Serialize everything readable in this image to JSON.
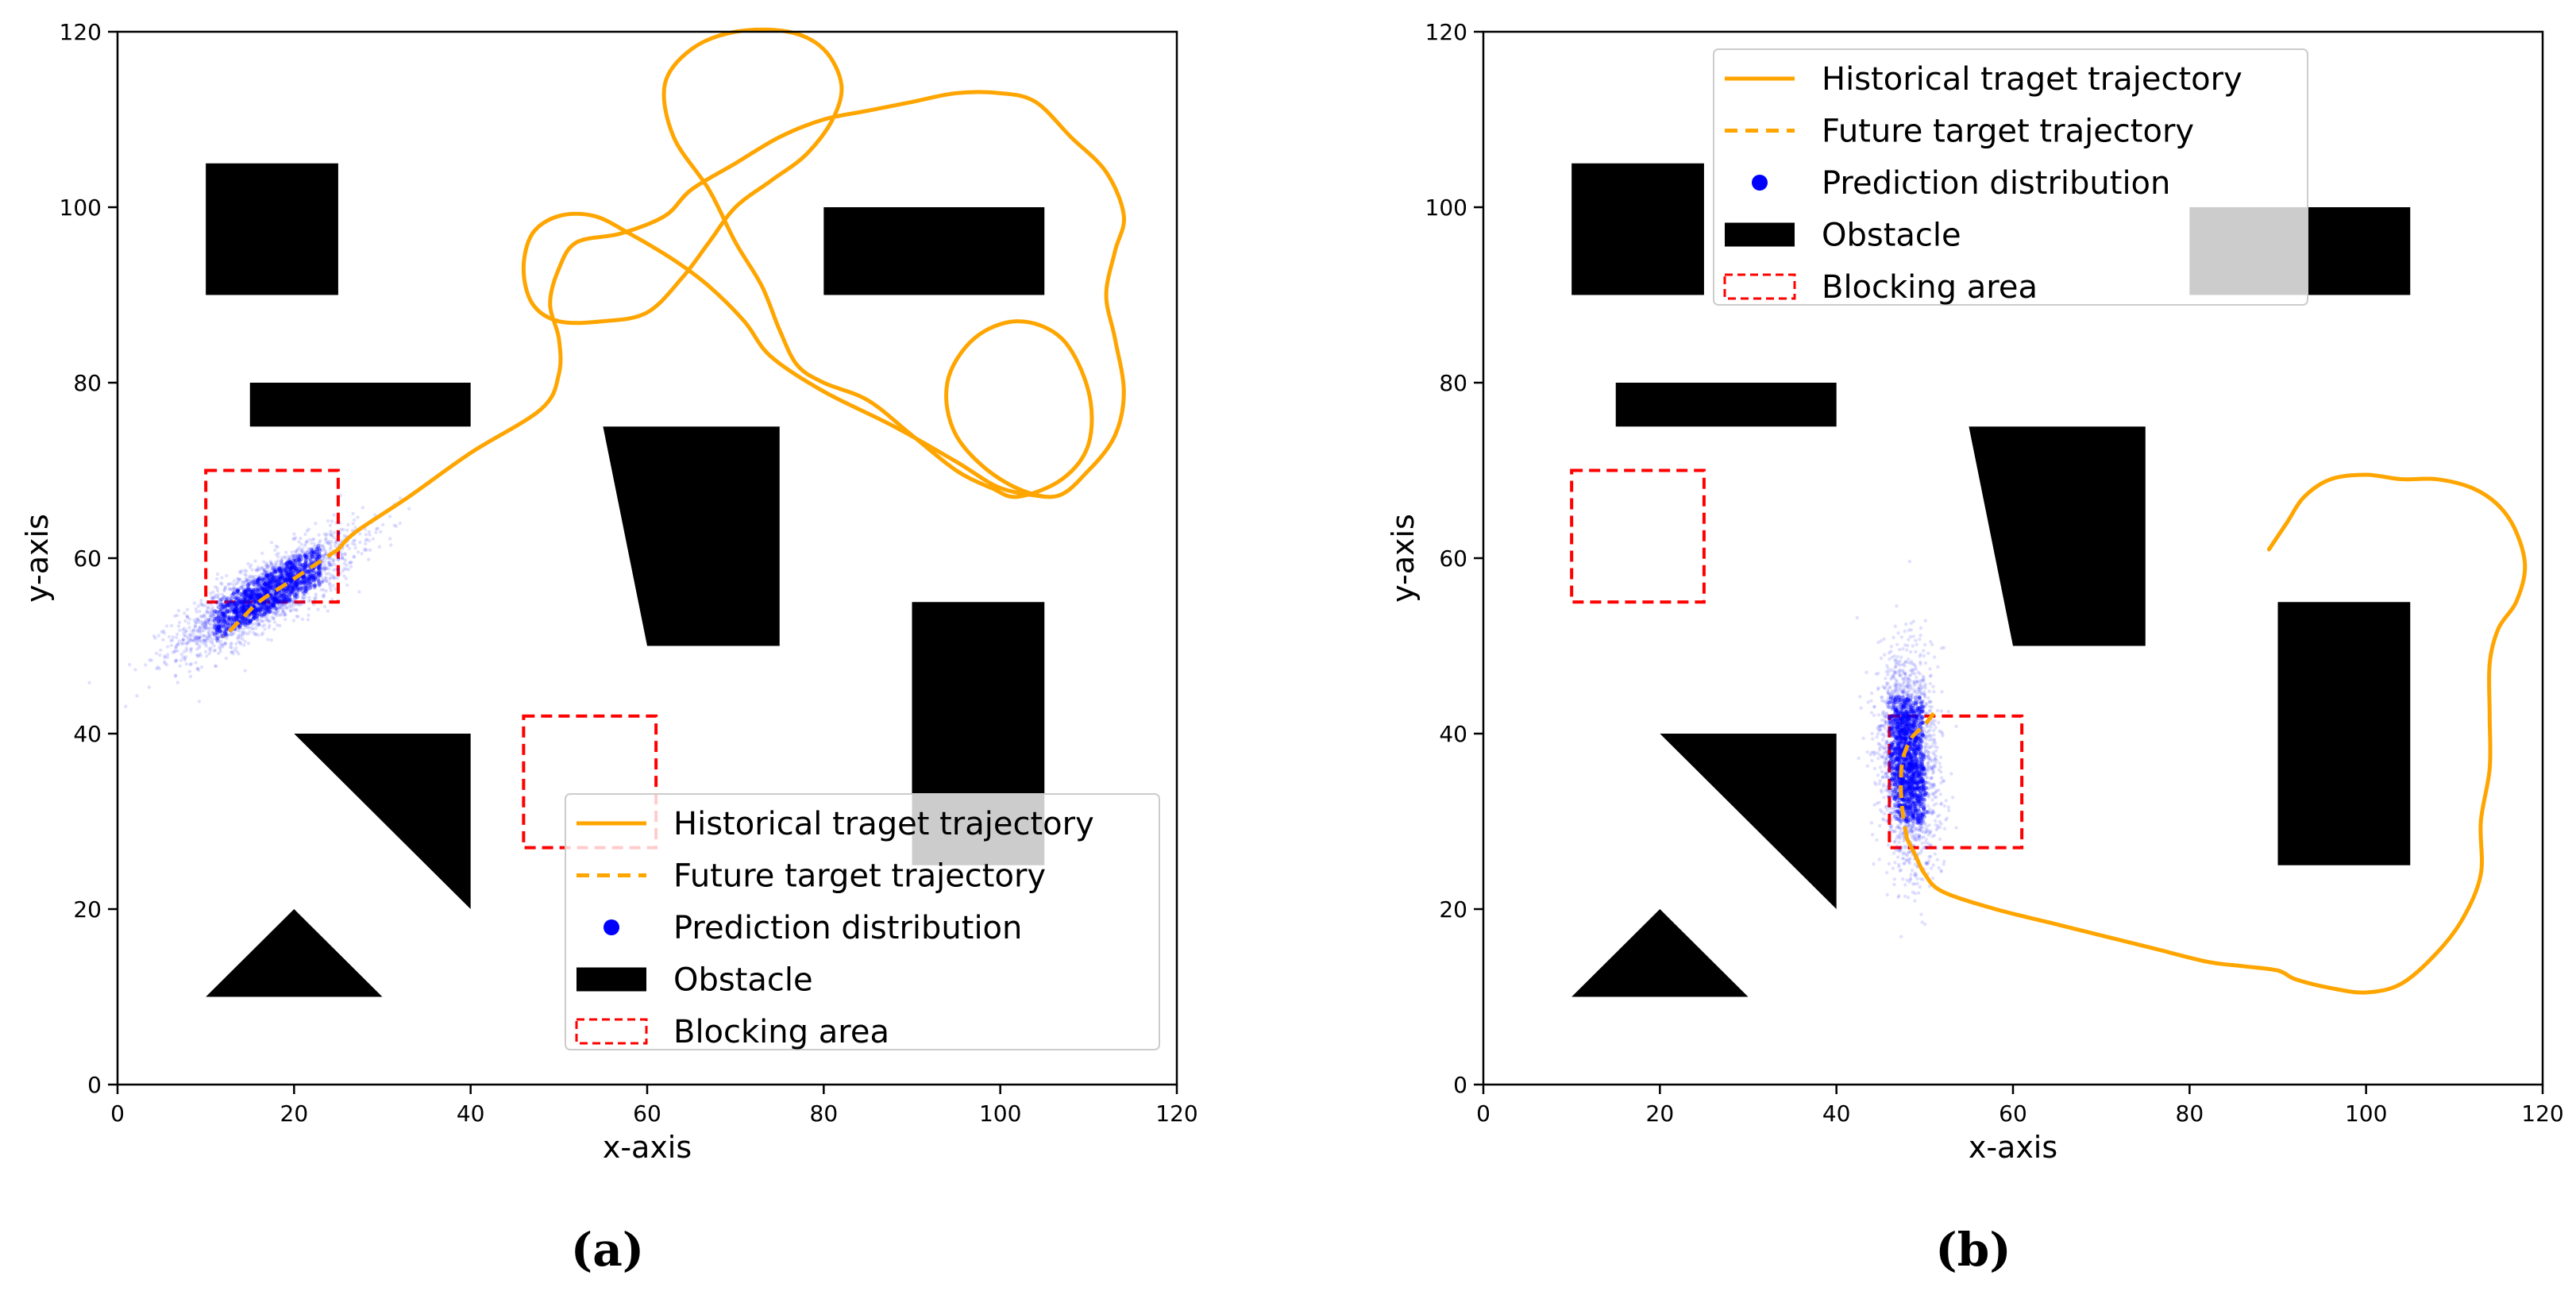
{
  "chart_data": [
    {
      "type": "scatter",
      "panel_label": "(a)",
      "xlabel": "x-axis",
      "ylabel": "y-axis",
      "xlim": [
        0,
        120
      ],
      "ylim": [
        0,
        120
      ],
      "x_ticks": [
        0,
        20,
        40,
        60,
        80,
        100,
        120
      ],
      "y_ticks": [
        0,
        20,
        40,
        60,
        80,
        100,
        120
      ],
      "grid": false,
      "legend_position": "lower-right",
      "legend": [
        "Historical traget trajectory",
        "Future target trajectory",
        "Prediction distribution",
        "Obstacle",
        "Blocking area"
      ],
      "obstacles": [
        [
          [
            10,
            105
          ],
          [
            25,
            105
          ],
          [
            25,
            90
          ],
          [
            10,
            90
          ]
        ],
        [
          [
            15,
            80
          ],
          [
            40,
            80
          ],
          [
            40,
            75
          ],
          [
            15,
            75
          ]
        ],
        [
          [
            80,
            100
          ],
          [
            105,
            100
          ],
          [
            105,
            90
          ],
          [
            80,
            90
          ]
        ],
        [
          [
            55,
            75
          ],
          [
            75,
            75
          ],
          [
            75,
            50
          ],
          [
            60,
            50
          ]
        ],
        [
          [
            90,
            55
          ],
          [
            105,
            55
          ],
          [
            105,
            25
          ],
          [
            90,
            25
          ]
        ],
        [
          [
            20,
            40
          ],
          [
            40,
            40
          ],
          [
            40,
            20
          ]
        ],
        [
          [
            10,
            10
          ],
          [
            20,
            20
          ],
          [
            30,
            10
          ]
        ]
      ],
      "blocking_areas": [
        {
          "x": 10,
          "y": 55,
          "w": 15,
          "h": 15
        },
        {
          "x": 46,
          "y": 27,
          "w": 15,
          "h": 15
        }
      ],
      "historical_trajectory": [
        [
          105,
          67
        ],
        [
          100,
          68
        ],
        [
          95,
          71
        ],
        [
          88,
          75
        ],
        [
          80,
          79
        ],
        [
          74,
          83
        ],
        [
          71,
          87
        ],
        [
          67,
          91
        ],
        [
          63,
          94
        ],
        [
          58,
          97
        ],
        [
          54,
          99
        ],
        [
          50,
          99
        ],
        [
          47,
          97
        ],
        [
          46,
          93
        ],
        [
          47,
          89
        ],
        [
          50,
          87
        ],
        [
          55,
          87
        ],
        [
          60,
          88
        ],
        [
          64,
          92
        ],
        [
          67,
          96
        ],
        [
          70,
          100
        ],
        [
          74,
          103
        ],
        [
          78,
          106
        ],
        [
          81,
          110
        ],
        [
          82,
          114
        ],
        [
          80,
          118
        ],
        [
          76,
          120
        ],
        [
          70,
          120
        ],
        [
          65,
          118
        ],
        [
          62,
          114
        ],
        [
          63,
          108
        ],
        [
          67,
          102
        ],
        [
          70,
          96
        ],
        [
          73,
          91
        ],
        [
          75,
          86
        ],
        [
          77,
          82
        ],
        [
          80,
          80
        ],
        [
          85,
          78
        ],
        [
          90,
          74
        ],
        [
          95,
          70
        ],
        [
          99,
          68
        ],
        [
          102,
          67
        ],
        [
          107,
          69
        ],
        [
          110,
          73
        ],
        [
          110,
          79
        ],
        [
          107,
          85
        ],
        [
          102,
          87
        ],
        [
          97,
          85
        ],
        [
          94,
          80
        ],
        [
          95,
          74
        ],
        [
          100,
          69
        ],
        [
          106,
          67
        ],
        [
          110,
          70
        ],
        [
          113,
          74
        ],
        [
          114,
          79
        ],
        [
          113,
          85
        ],
        [
          112,
          90
        ],
        [
          113,
          95
        ],
        [
          114,
          99
        ],
        [
          112,
          104
        ],
        [
          108,
          108
        ],
        [
          104,
          112
        ],
        [
          100,
          113
        ],
        [
          95,
          113
        ],
        [
          90,
          112
        ],
        [
          85,
          111
        ],
        [
          80,
          110
        ],
        [
          75,
          108
        ],
        [
          70,
          105
        ],
        [
          65,
          102
        ],
        [
          62,
          99
        ],
        [
          57,
          97
        ],
        [
          52,
          96
        ],
        [
          50,
          93
        ],
        [
          49,
          89
        ],
        [
          50,
          85
        ],
        [
          50,
          81
        ],
        [
          48,
          77
        ],
        [
          40,
          72
        ],
        [
          33,
          67
        ],
        [
          27,
          63
        ],
        [
          25,
          61
        ]
      ],
      "future_trajectory": [
        [
          25,
          61
        ],
        [
          22,
          59
        ],
        [
          19,
          57
        ],
        [
          16,
          55
        ],
        [
          14,
          53
        ],
        [
          12,
          51
        ]
      ],
      "distribution": {
        "mean": [
          17,
          56
        ],
        "spread": [
          5,
          3.5
        ]
      }
    },
    {
      "type": "scatter",
      "panel_label": "(b)",
      "xlabel": "x-axis",
      "ylabel": "y-axis",
      "xlim": [
        0,
        120
      ],
      "ylim": [
        0,
        120
      ],
      "x_ticks": [
        0,
        20,
        40,
        60,
        80,
        100,
        120
      ],
      "y_ticks": [
        0,
        20,
        40,
        60,
        80,
        100,
        120
      ],
      "grid": false,
      "legend_position": "upper-left",
      "legend": [
        "Historical traget trajectory",
        "Future target trajectory",
        "Prediction distribution",
        "Obstacle",
        "Blocking area"
      ],
      "obstacles": [
        [
          [
            10,
            105
          ],
          [
            25,
            105
          ],
          [
            25,
            90
          ],
          [
            10,
            90
          ]
        ],
        [
          [
            15,
            80
          ],
          [
            40,
            80
          ],
          [
            40,
            75
          ],
          [
            15,
            75
          ]
        ],
        [
          [
            80,
            100
          ],
          [
            105,
            100
          ],
          [
            105,
            90
          ],
          [
            80,
            90
          ]
        ],
        [
          [
            55,
            75
          ],
          [
            75,
            75
          ],
          [
            75,
            50
          ],
          [
            60,
            50
          ]
        ],
        [
          [
            90,
            55
          ],
          [
            105,
            55
          ],
          [
            105,
            25
          ],
          [
            90,
            25
          ]
        ],
        [
          [
            20,
            40
          ],
          [
            40,
            40
          ],
          [
            40,
            20
          ]
        ],
        [
          [
            10,
            10
          ],
          [
            20,
            20
          ],
          [
            30,
            10
          ]
        ]
      ],
      "blocking_areas": [
        {
          "x": 10,
          "y": 55,
          "w": 15,
          "h": 15
        },
        {
          "x": 46,
          "y": 27,
          "w": 15,
          "h": 15
        }
      ],
      "historical_trajectory": [
        [
          89,
          61
        ],
        [
          91,
          64
        ],
        [
          93,
          67
        ],
        [
          96,
          69
        ],
        [
          100,
          69.5
        ],
        [
          104,
          69
        ],
        [
          108,
          69
        ],
        [
          112,
          68
        ],
        [
          115,
          66
        ],
        [
          117,
          63
        ],
        [
          118,
          59
        ],
        [
          117,
          55
        ],
        [
          115,
          52
        ],
        [
          114,
          48
        ],
        [
          114,
          42
        ],
        [
          114,
          36
        ],
        [
          113,
          30
        ],
        [
          113,
          24
        ],
        [
          111,
          19
        ],
        [
          108,
          15
        ],
        [
          104,
          11.5
        ],
        [
          100,
          10.5
        ],
        [
          96,
          11
        ],
        [
          92,
          12
        ],
        [
          90,
          13
        ],
        [
          86,
          13.5
        ],
        [
          82,
          14
        ],
        [
          76,
          15.5
        ],
        [
          70,
          17
        ],
        [
          64,
          18.5
        ],
        [
          58,
          20
        ],
        [
          52,
          22
        ],
        [
          50,
          24
        ],
        [
          49,
          26
        ],
        [
          48,
          28
        ]
      ],
      "future_trajectory": [
        [
          48,
          28
        ],
        [
          47.5,
          31
        ],
        [
          47.3,
          34
        ],
        [
          47.5,
          37
        ],
        [
          48.5,
          39.5
        ],
        [
          50,
          41
        ],
        [
          51.5,
          43
        ]
      ],
      "distribution": {
        "mean": [
          48,
          37
        ],
        "spread": [
          1.6,
          6
        ]
      }
    }
  ],
  "colors": {
    "trajectory": "#ffa500",
    "distribution": "#0000ff",
    "obstacle": "#000000",
    "blocking": "#ff0000",
    "legend_overlap": "#c8c8c8"
  }
}
